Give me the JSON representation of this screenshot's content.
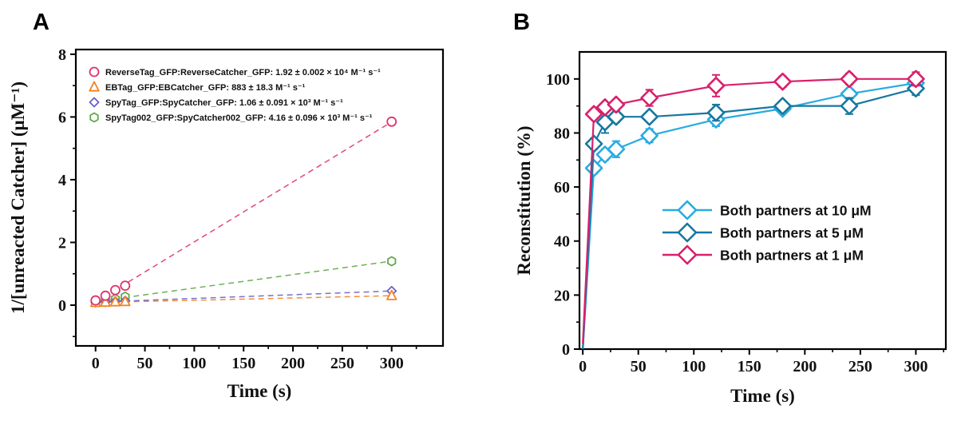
{
  "chart_data": [
    {
      "panel_label": "A",
      "type": "scatter",
      "title": "",
      "xlabel": "Time (s)",
      "ylabel": "1/[unreacted Catcher]  (μM⁻¹)",
      "xlim": [
        -20,
        352
      ],
      "ylim": [
        -1.3,
        8.15
      ],
      "xticks": [
        0,
        50,
        100,
        150,
        200,
        250,
        300
      ],
      "yticks": [
        0,
        2,
        4,
        6,
        8
      ],
      "grid": false,
      "legend_position": "top-left",
      "x": [
        0,
        10,
        20,
        30,
        300
      ],
      "series": [
        {
          "name": "ReverseTag_GFP:ReverseCatcher_GFP",
          "label": "ReverseTag_GFP:ReverseCatcher_GFP: 1.92 ± 0.002 × 10⁴ M⁻¹ s⁻¹",
          "rate_constant": "1.92 ± 0.002 × 10⁴ M⁻¹ s⁻¹",
          "marker": "circle",
          "color": "#E0326E",
          "values": [
            0.15,
            0.3,
            0.48,
            0.62,
            5.85
          ],
          "fit_line": true
        },
        {
          "name": "EBTag_GFP:EBCatcher_GFP",
          "label": "EBTag_GFP:EBCatcher_GFP: 883  ± 18.3 M⁻¹ s⁻¹",
          "rate_constant": "883 ± 18.3 M⁻¹ s⁻¹",
          "marker": "triangle",
          "color": "#F58220",
          "values": [
            0.08,
            0.09,
            0.1,
            0.11,
            0.3
          ],
          "fit_line": true
        },
        {
          "name": "SpyTag_GFP:SpyCatcher_GFP",
          "label": "SpyTag_GFP:SpyCatcher_GFP: 1.06 ± 0.091 × 10³ M⁻¹ s⁻¹",
          "rate_constant": "1.06 ± 0.091 × 10³ M⁻¹ s⁻¹",
          "marker": "diamond",
          "color": "#6961C8",
          "values": [
            0.09,
            0.1,
            0.12,
            0.14,
            0.45
          ],
          "fit_line": true
        },
        {
          "name": "SpyTag002_GFP:SpyCatcher002_GFP",
          "label": "SpyTag002_GFP:SpyCatcher002_GFP: 4.16 ± 0.096 × 10³ M⁻¹ s⁻¹",
          "rate_constant": "4.16 ± 0.096 × 10³ M⁻¹ s⁻¹",
          "marker": "hexagon",
          "color": "#5FA848",
          "values": [
            0.1,
            0.15,
            0.2,
            0.27,
            1.4
          ],
          "fit_line": true
        }
      ]
    },
    {
      "panel_label": "B",
      "type": "line",
      "title": "",
      "xlabel": "Time (s)",
      "ylabel": "Reconstitution (%)",
      "xlim": [
        -3,
        327
      ],
      "ylim": [
        0,
        110
      ],
      "xticks": [
        0,
        50,
        100,
        150,
        200,
        250,
        300
      ],
      "yticks": [
        0,
        20,
        40,
        60,
        80,
        100
      ],
      "grid": false,
      "legend_position": "center-right",
      "x": [
        0,
        10,
        20,
        30,
        60,
        120,
        180,
        240,
        300
      ],
      "series": [
        {
          "name": "Both partners at 10 μM",
          "label": "Both partners at 10 μM",
          "marker": "diamond",
          "color": "#29ABE2",
          "values": [
            0,
            67,
            72,
            74,
            79,
            85,
            89,
            94.5,
            98.5
          ],
          "errors": [
            0,
            2,
            2,
            3,
            2.5,
            2.5,
            1.5,
            1.5,
            3
          ]
        },
        {
          "name": "Both partners at 5 μM",
          "label": "Both partners at 5 μM",
          "marker": "diamond",
          "color": "#17789F",
          "values": [
            0,
            76,
            84,
            86,
            86,
            87.5,
            90,
            90,
            96.5
          ],
          "errors": [
            0,
            2,
            4,
            2,
            1.5,
            3,
            1.5,
            3,
            2.5
          ]
        },
        {
          "name": "Both partners at 1 μM",
          "label": "Both partners at 1 μM",
          "marker": "diamond",
          "color": "#D9206B",
          "values": [
            2,
            87,
            89.5,
            90.5,
            93,
            97.5,
            99,
            100,
            100
          ],
          "errors": [
            0,
            1.5,
            1.5,
            1,
            3,
            4,
            2,
            2,
            2.5
          ]
        }
      ]
    }
  ]
}
